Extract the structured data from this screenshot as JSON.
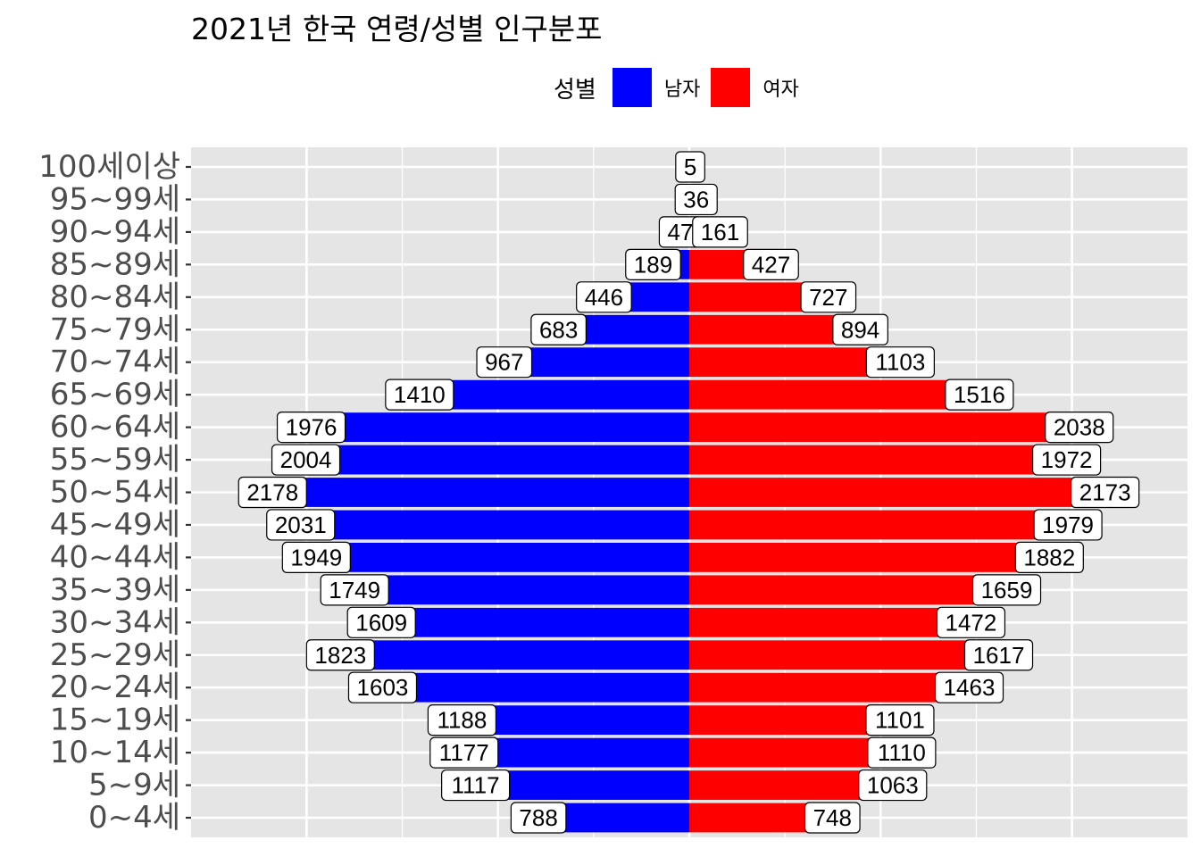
{
  "title": "2021년 한국 연령/성별 인구분포",
  "legend": {
    "title": "성별",
    "items": [
      {
        "label": "남자",
        "color": "#0000FF"
      },
      {
        "label": "여자",
        "color": "#FF0000"
      }
    ]
  },
  "chart_data": {
    "type": "bar",
    "orientation": "horizontal",
    "title": "2021년 한국 연령/성별 인구분포",
    "xlabel": "",
    "ylabel": "",
    "xlim": [
      -2400,
      2400
    ],
    "grid": true,
    "legend_position": "top",
    "categories": [
      "0~4세",
      "5~9세",
      "10~14세",
      "15~19세",
      "20~24세",
      "25~29세",
      "30~34세",
      "35~39세",
      "40~44세",
      "45~49세",
      "50~54세",
      "55~59세",
      "60~64세",
      "65~69세",
      "70~74세",
      "75~79세",
      "80~84세",
      "85~89세",
      "90~94세",
      "95~99세",
      "100세이상"
    ],
    "series": [
      {
        "name": "남자",
        "color": "#0000FF",
        "values": [
          788,
          1117,
          1177,
          1188,
          1603,
          1823,
          1609,
          1749,
          1949,
          2031,
          2178,
          2004,
          1976,
          1410,
          967,
          683,
          446,
          189,
          47,
          5,
          1
        ]
      },
      {
        "name": "여자",
        "color": "#FF0000",
        "values": [
          748,
          1063,
          1110,
          1101,
          1463,
          1617,
          1472,
          1659,
          1882,
          1979,
          2173,
          1972,
          2038,
          1516,
          1103,
          894,
          727,
          427,
          161,
          36,
          5
        ]
      }
    ],
    "labels": {
      "male": [
        "788",
        "1117",
        "1177",
        "1188",
        "1603",
        "1823",
        "1609",
        "1749",
        "1949",
        "2031",
        "2178",
        "2004",
        "1976",
        "1410",
        "967",
        "683",
        "446",
        "189",
        "47",
        "",
        ""
      ],
      "female": [
        "748",
        "1063",
        "1110",
        "1101",
        "1463",
        "1617",
        "1472",
        "1659",
        "1882",
        "1979",
        "2173",
        "1972",
        "2038",
        "1516",
        "1103",
        "894",
        "727",
        "427",
        "161",
        "36",
        "5"
      ]
    }
  }
}
